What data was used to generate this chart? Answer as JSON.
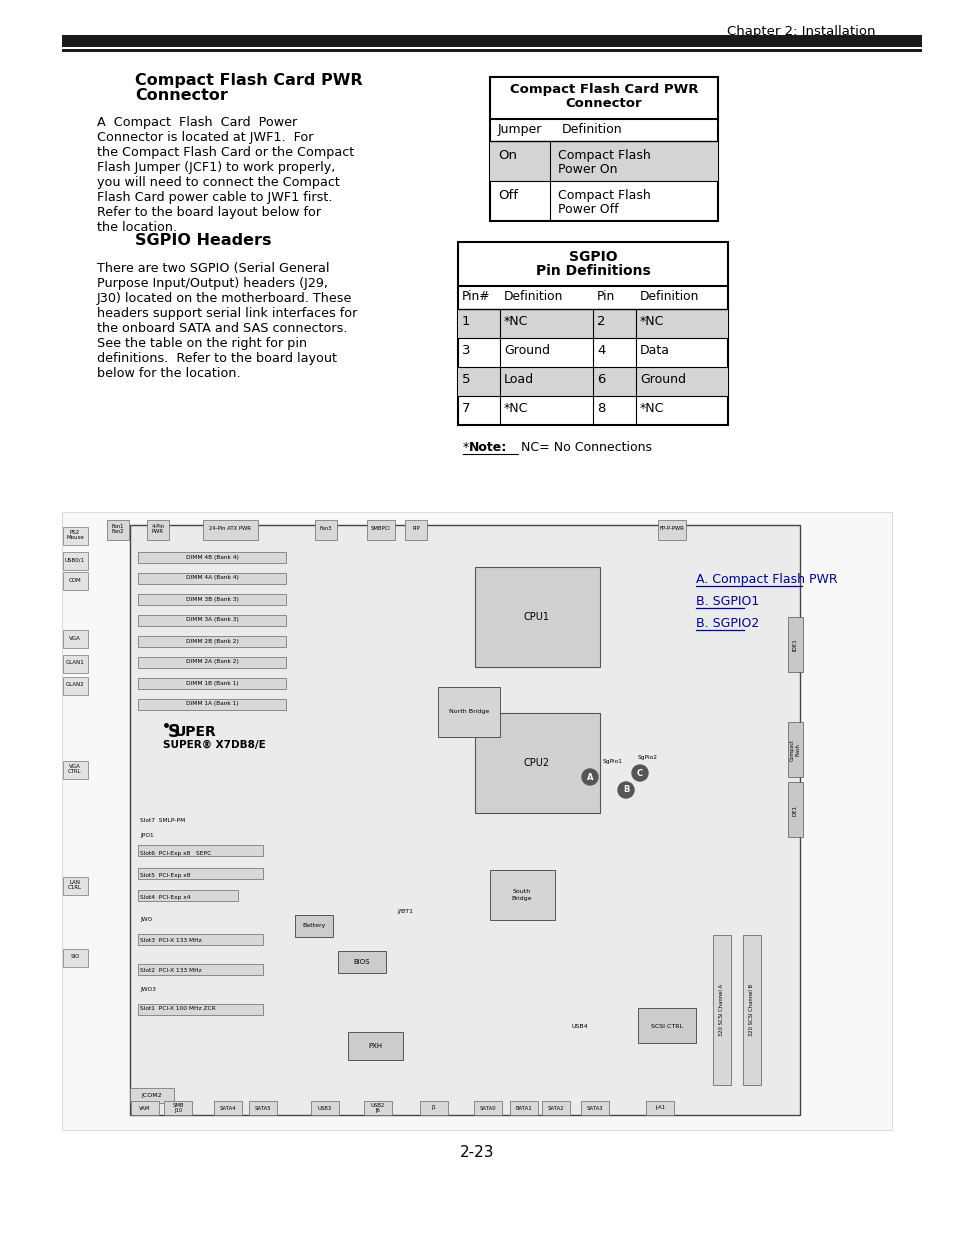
{
  "page_bg": "#ffffff",
  "header_text": "Chapter 2: Installation",
  "section1_title_line1": "Compact Flash Card PWR",
  "section1_title_line2": "Connector",
  "section1_body_lines": [
    "A  Compact  Flash  Card  Power",
    "Connector is located at JWF1.  For",
    "the Compact Flash Card or the Compact",
    "Flash Jumper (JCF1) to work properly,",
    "you will need to connect the Compact",
    "Flash Card power cable to JWF1 first.",
    "Refer to the board layout below for",
    "the location."
  ],
  "table1_title_line1": "Compact Flash Card PWR",
  "table1_title_line2": "Connector",
  "table1_col1_header": "Jumper",
  "table1_col2_header": "Definition",
  "table1_row1_col1": "On",
  "table1_row1_col2a": "Compact Flash",
  "table1_row1_col2b": "Power On",
  "table1_row2_col1": "Off",
  "table1_row2_col2a": "Compact Flash",
  "table1_row2_col2b": "Power Off",
  "section2_title": "SGPIO Headers",
  "section2_body_lines": [
    "There are two SGPIO (Serial General",
    "Purpose Input/Output) headers (J29,",
    "J30) located on the motherboard. These",
    "headers support serial link interfaces for",
    "the onboard SATA and SAS connectors.",
    "See the table on the right for pin",
    "definitions.  Refer to the board layout",
    "below for the location."
  ],
  "table2_title_line1": "SGPIO",
  "table2_title_line2": "Pin Definitions",
  "table2_headers": [
    "Pin#",
    "Definition",
    "Pin",
    "Definition"
  ],
  "table2_rows": [
    [
      "1",
      "*NC",
      "2",
      "*NC",
      true
    ],
    [
      "3",
      "Ground",
      "4",
      "Data",
      false
    ],
    [
      "5",
      "Load",
      "6",
      "Ground",
      true
    ],
    [
      "7",
      "*NC",
      "8",
      "*NC",
      false
    ]
  ],
  "note_star": "*",
  "note_bold": "Note:",
  "note_rest": "  NC= No Connections",
  "legend_items": [
    "A. Compact Flash PWR",
    "B. SGPIO1",
    "B. SGPIO2"
  ],
  "board_super_text": "SUPER",
  "board_model": "X7DB8/E",
  "page_number": "2-23",
  "dimm_labels": [
    "DIMM 4B (Bank 4)",
    "DIMM 4A (Bank 4)",
    "DIMM 3B (Bank 3)",
    "DIMM 3A (Bank 3)",
    "DIMM 2B (Bank 2)",
    "DIMM 2A (Bank 2)",
    "DIMM 1B (Bank 1)",
    "DIMM 1A (Bank 1)"
  ]
}
